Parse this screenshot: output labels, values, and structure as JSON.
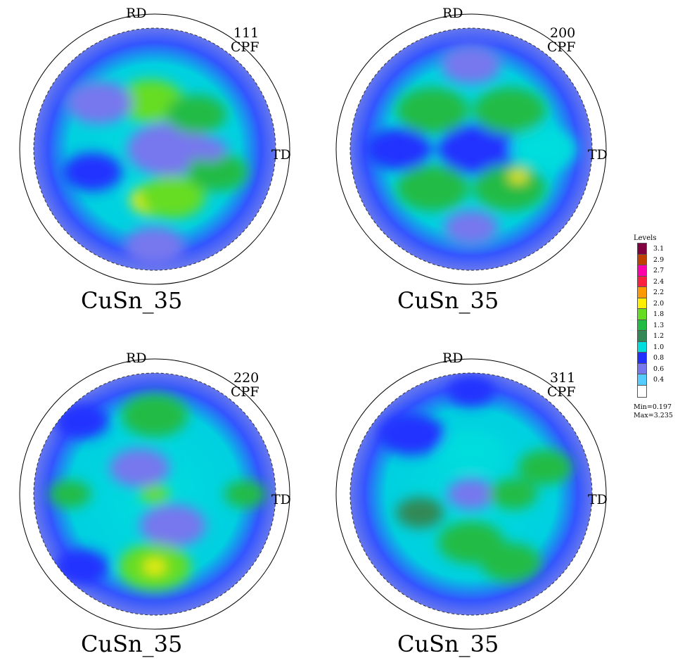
{
  "chart_data": [
    {
      "type": "heatmap",
      "pole_figure": "111",
      "label": "CPF",
      "axes": {
        "top": "RD",
        "right": "TD"
      },
      "caption": "CuSn_35",
      "features": [
        {
          "r": 0.0,
          "deg": 0,
          "level": 0.4,
          "size": 0.18
        },
        {
          "r": 0.12,
          "deg": 0,
          "level": 0.6,
          "size": 0.28
        },
        {
          "r": 0.42,
          "deg": 270,
          "level": 2.0,
          "size": 0.16
        },
        {
          "r": 0.42,
          "deg": 290,
          "level": 1.8,
          "size": 0.22
        },
        {
          "r": 0.4,
          "deg": 95,
          "level": 1.8,
          "size": 0.22
        },
        {
          "r": 0.45,
          "deg": 40,
          "level": 1.3,
          "size": 0.2
        },
        {
          "r": 0.6,
          "deg": 140,
          "level": 0.6,
          "size": 0.22
        },
        {
          "r": 0.55,
          "deg": 200,
          "level": 0.8,
          "size": 0.2
        },
        {
          "r": 0.8,
          "deg": 270,
          "level": 0.6,
          "size": 0.2
        },
        {
          "r": 0.55,
          "deg": 340,
          "level": 1.3,
          "size": 0.2
        },
        {
          "r": 0.45,
          "deg": 0,
          "level": 0.6,
          "size": 0.12
        }
      ]
    },
    {
      "type": "heatmap",
      "pole_figure": "200",
      "label": "CPF",
      "axes": {
        "top": "RD",
        "right": "TD"
      },
      "caption": "CuSn_35",
      "features": [
        {
          "r": 0.0,
          "deg": 0,
          "level": 0.6,
          "size": 0.18
        },
        {
          "r": 0.05,
          "deg": 0,
          "level": 0.8,
          "size": 0.26
        },
        {
          "r": 0.45,
          "deg": 45,
          "level": 1.3,
          "size": 0.24
        },
        {
          "r": 0.45,
          "deg": 135,
          "level": 1.3,
          "size": 0.24
        },
        {
          "r": 0.45,
          "deg": 225,
          "level": 1.3,
          "size": 0.24
        },
        {
          "r": 0.45,
          "deg": 315,
          "level": 1.3,
          "size": 0.24
        },
        {
          "r": 0.45,
          "deg": 330,
          "level": 2.0,
          "size": 0.06
        },
        {
          "r": 0.7,
          "deg": 90,
          "level": 0.6,
          "size": 0.2
        },
        {
          "r": 0.65,
          "deg": 270,
          "level": 0.6,
          "size": 0.18
        },
        {
          "r": 0.6,
          "deg": 180,
          "level": 0.8,
          "size": 0.22
        },
        {
          "r": 0.6,
          "deg": 0,
          "level": 1.0,
          "size": 0.22
        }
      ]
    },
    {
      "type": "heatmap",
      "pole_figure": "220",
      "label": "CPF",
      "axes": {
        "top": "RD",
        "right": "TD"
      },
      "caption": "CuSn_35",
      "features": [
        {
          "r": 0.0,
          "deg": 0,
          "level": 3.1,
          "size": 0.03
        },
        {
          "r": 0.0,
          "deg": 0,
          "level": 2.4,
          "size": 0.05
        },
        {
          "r": 0.0,
          "deg": 0,
          "level": 1.8,
          "size": 0.1
        },
        {
          "r": 0.25,
          "deg": 120,
          "level": 0.6,
          "size": 0.2
        },
        {
          "r": 0.3,
          "deg": 300,
          "level": 0.6,
          "size": 0.22
        },
        {
          "r": 0.65,
          "deg": 90,
          "level": 1.3,
          "size": 0.22
        },
        {
          "r": 0.6,
          "deg": 270,
          "level": 1.8,
          "size": 0.24
        },
        {
          "r": 0.6,
          "deg": 270,
          "level": 2.0,
          "size": 0.07
        },
        {
          "r": 0.7,
          "deg": 180,
          "level": 1.3,
          "size": 0.14
        },
        {
          "r": 0.75,
          "deg": 0,
          "level": 1.3,
          "size": 0.14
        },
        {
          "r": 0.85,
          "deg": 135,
          "level": 0.8,
          "size": 0.18
        },
        {
          "r": 0.85,
          "deg": 225,
          "level": 0.8,
          "size": 0.18
        }
      ]
    },
    {
      "type": "heatmap",
      "pole_figure": "311",
      "label": "CPF",
      "axes": {
        "top": "RD",
        "right": "TD"
      },
      "caption": "CuSn_35",
      "features": [
        {
          "r": 0.0,
          "deg": 0,
          "level": 0.6,
          "size": 0.16
        },
        {
          "r": 0.35,
          "deg": 90,
          "level": 1.0,
          "size": 0.2
        },
        {
          "r": 0.35,
          "deg": 0,
          "level": 1.3,
          "size": 0.16
        },
        {
          "r": 0.4,
          "deg": 270,
          "level": 1.3,
          "size": 0.22
        },
        {
          "r": 0.45,
          "deg": 200,
          "level": 1.2,
          "size": 0.16
        },
        {
          "r": 0.65,
          "deg": 300,
          "level": 1.3,
          "size": 0.2
        },
        {
          "r": 0.65,
          "deg": 20,
          "level": 1.3,
          "size": 0.18
        },
        {
          "r": 0.7,
          "deg": 135,
          "level": 0.8,
          "size": 0.22
        },
        {
          "r": 0.85,
          "deg": 90,
          "level": 0.8,
          "size": 0.16
        }
      ]
    }
  ],
  "legend": {
    "title": "Levels",
    "levels": [
      {
        "value": "3.1",
        "color": "#800040"
      },
      {
        "value": "2.9",
        "color": "#c04000"
      },
      {
        "value": "2.7",
        "color": "#ff00aa"
      },
      {
        "value": "2.4",
        "color": "#ff2040"
      },
      {
        "value": "2.2",
        "color": "#ff9900"
      },
      {
        "value": "2.0",
        "color": "#ffee00"
      },
      {
        "value": "1.8",
        "color": "#66dd22"
      },
      {
        "value": "1.3",
        "color": "#22bb44"
      },
      {
        "value": "1.2",
        "color": "#338855"
      },
      {
        "value": "1.0",
        "color": "#00dddd"
      },
      {
        "value": "0.8",
        "color": "#2030ff"
      },
      {
        "value": "0.6",
        "color": "#7777ee"
      },
      {
        "value": "0.4",
        "color": "#55ccff"
      },
      {
        "value": "",
        "color": "#ffffff"
      }
    ],
    "min": "Min=0.197",
    "max": "Max=3.235"
  }
}
